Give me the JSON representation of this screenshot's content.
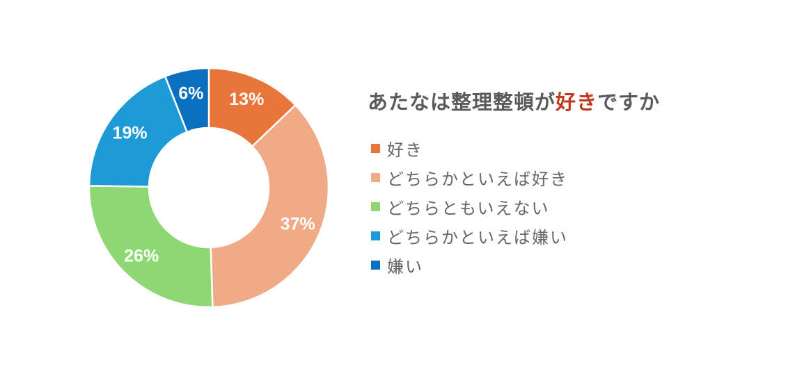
{
  "chart_data": {
    "type": "pie",
    "variant": "donut",
    "title": {
      "before": "あたなは整理整頓が",
      "highlight": "好き",
      "after": "ですか"
    },
    "categories": [
      "好き",
      "どちらかといえば好き",
      "どちらともいえない",
      "どちらかといえば嫌い",
      "嫌い"
    ],
    "values": [
      13,
      37,
      26,
      19,
      6
    ],
    "labels": [
      "13%",
      "37%",
      "26%",
      "19%",
      "6%"
    ],
    "colors": [
      "#E8763A",
      "#F0AA86",
      "#8DD873",
      "#1E9AD6",
      "#0A6FBF"
    ],
    "title_highlight_color": "#C0391F",
    "legend_position": "right"
  }
}
